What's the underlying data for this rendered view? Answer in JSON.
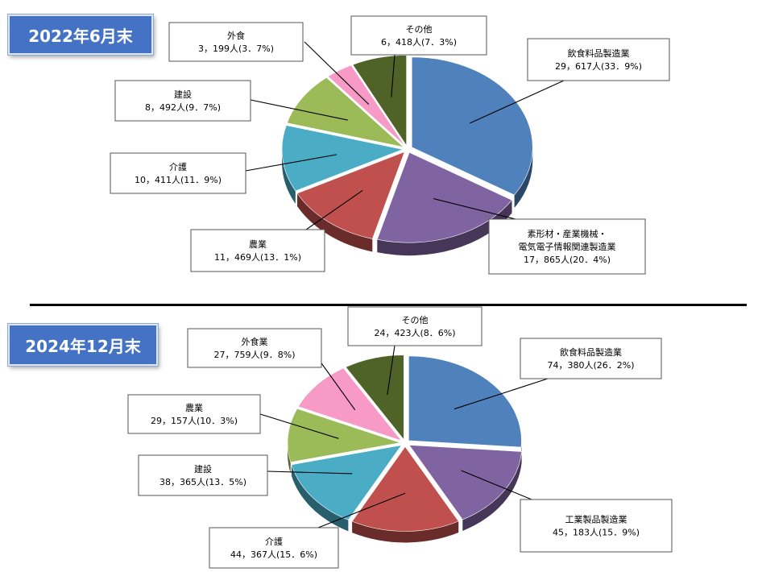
{
  "chart_data": [
    {
      "type": "pie",
      "title": "2022年6月末",
      "series": [
        {
          "name": "飲食料品製造業",
          "value": 29617,
          "value_label": "29，617人",
          "percent": 33.9,
          "percent_label": "(33．9%)",
          "color": "#4f81bd"
        },
        {
          "name": "素形材・産業機械・\n電気電子情報関連製造業",
          "value": 17865,
          "value_label": "17，865人",
          "percent": 20.4,
          "percent_label": "(20．4%)",
          "color": "#8064a2"
        },
        {
          "name": "農業",
          "value": 11469,
          "value_label": "11，469人",
          "percent": 13.1,
          "percent_label": "(13．1%)",
          "color": "#c0504d"
        },
        {
          "name": "介護",
          "value": 10411,
          "value_label": "10，411人",
          "percent": 11.9,
          "percent_label": "(11．9%)",
          "color": "#4bacc6"
        },
        {
          "name": "建設",
          "value": 8492,
          "value_label": "8，492人",
          "percent": 9.7,
          "percent_label": "(9．7%)",
          "color": "#9bbb59"
        },
        {
          "name": "外食",
          "value": 3199,
          "value_label": "3，199人",
          "percent": 3.7,
          "percent_label": "(3．7%)",
          "color": "#f79ac6"
        },
        {
          "name": "その他",
          "value": 6418,
          "value_label": "6，418人",
          "percent": 7.3,
          "percent_label": "(7．3%)",
          "color": "#4f6228"
        }
      ]
    },
    {
      "type": "pie",
      "title": "2024年12月末",
      "series": [
        {
          "name": "飲食料品製造業",
          "value": 74380,
          "value_label": "74，380人",
          "percent": 26.2,
          "percent_label": "(26．2%)",
          "color": "#4f81bd"
        },
        {
          "name": "工業製品製造業",
          "value": 45183,
          "value_label": "45，183人",
          "percent": 15.9,
          "percent_label": "(15．9%)",
          "color": "#8064a2"
        },
        {
          "name": "介護",
          "value": 44367,
          "value_label": "44，367人",
          "percent": 15.6,
          "percent_label": "(15．6%)",
          "color": "#c0504d"
        },
        {
          "name": "建設",
          "value": 38365,
          "value_label": "38，365人",
          "percent": 13.5,
          "percent_label": "(13．5%)",
          "color": "#4bacc6"
        },
        {
          "name": "農業",
          "value": 29157,
          "value_label": "29，157人",
          "percent": 10.3,
          "percent_label": "(10．3%)",
          "color": "#9bbb59"
        },
        {
          "name": "外食業",
          "value": 27759,
          "value_label": "27，759人",
          "percent": 9.8,
          "percent_label": "(9．8%)",
          "color": "#f79ac6"
        },
        {
          "name": "その他",
          "value": 24423,
          "value_label": "24，423人",
          "percent": 8.6,
          "percent_label": "(8．6%)",
          "color": "#4f6228"
        }
      ]
    }
  ]
}
